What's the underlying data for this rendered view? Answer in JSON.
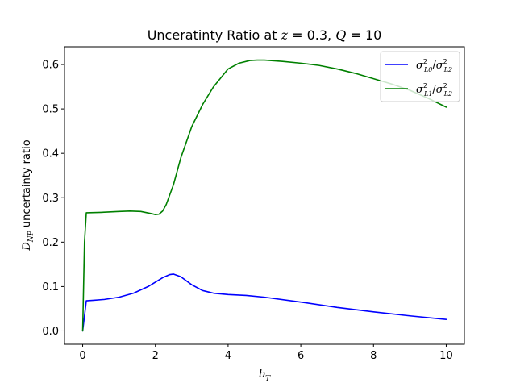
{
  "chart_data": {
    "type": "line",
    "title_parts": [
      {
        "t": "Unceratinty Ratio at ",
        "math": false
      },
      {
        "t": "z",
        "math": true
      },
      {
        "t": " = 0.3, ",
        "math": false
      },
      {
        "t": "Q",
        "math": true
      },
      {
        "t": " = 10",
        "math": false
      }
    ],
    "xlabel": {
      "base": "b",
      "sub": "T"
    },
    "ylabel": {
      "base": "D",
      "sub": "NP",
      "rest": " uncertainty ratio"
    },
    "xlim": [
      -0.5,
      10.5
    ],
    "ylim": [
      -0.03,
      0.64
    ],
    "xticks": [
      0,
      2,
      4,
      6,
      8,
      10
    ],
    "xtick_labels": [
      "0",
      "2",
      "4",
      "6",
      "8",
      "10"
    ],
    "yticks": [
      0.0,
      0.1,
      0.2,
      0.3,
      0.4,
      0.5,
      0.6
    ],
    "ytick_labels": [
      "0.0",
      "0.1",
      "0.2",
      "0.3",
      "0.4",
      "0.5",
      "0.6"
    ],
    "grid": false,
    "legend_position": "top-right",
    "series": [
      {
        "name": "σ²L0/σ²L2",
        "legend": {
          "a_sub": "L0",
          "b_sub": "L2"
        },
        "color": "#0000ff",
        "x": [
          0,
          0.1,
          0.3,
          0.6,
          1.0,
          1.4,
          1.8,
          2.0,
          2.2,
          2.4,
          2.5,
          2.7,
          3.0,
          3.3,
          3.6,
          4.0,
          4.5,
          5.0,
          6.0,
          7.0,
          8.0,
          9.0,
          10.0
        ],
        "y": [
          0.0,
          0.068,
          0.069,
          0.071,
          0.076,
          0.085,
          0.1,
          0.11,
          0.12,
          0.127,
          0.128,
          0.122,
          0.104,
          0.091,
          0.085,
          0.082,
          0.08,
          0.076,
          0.065,
          0.053,
          0.043,
          0.034,
          0.026
        ]
      },
      {
        "name": "σ²L1/σ²L2",
        "legend": {
          "a_sub": "L1",
          "b_sub": "L2"
        },
        "color": "#008000",
        "x": [
          0,
          0.05,
          0.1,
          0.5,
          1.0,
          1.3,
          1.6,
          1.9,
          2.0,
          2.1,
          2.2,
          2.3,
          2.5,
          2.7,
          3.0,
          3.3,
          3.6,
          4.0,
          4.3,
          4.6,
          4.8,
          5.0,
          5.5,
          6.0,
          6.5,
          7.0,
          7.5,
          8.0,
          8.5,
          9.0,
          9.5,
          10.0
        ],
        "y": [
          0.0,
          0.2,
          0.266,
          0.267,
          0.269,
          0.27,
          0.269,
          0.264,
          0.262,
          0.263,
          0.27,
          0.285,
          0.33,
          0.39,
          0.46,
          0.51,
          0.55,
          0.59,
          0.603,
          0.609,
          0.61,
          0.61,
          0.607,
          0.603,
          0.598,
          0.59,
          0.58,
          0.568,
          0.556,
          0.542,
          0.524,
          0.504
        ]
      }
    ]
  }
}
